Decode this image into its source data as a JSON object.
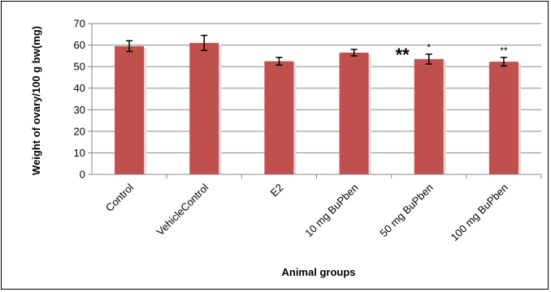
{
  "chart_data": {
    "type": "bar",
    "categories": [
      "Control",
      "VehicleControl",
      "E2",
      "10 mg BuPben",
      "50 mg BuPben",
      "100 mg BuPben"
    ],
    "values": [
      59.5,
      61.0,
      52.5,
      56.5,
      53.5,
      52.3
    ],
    "errors": [
      2.5,
      3.5,
      1.8,
      1.5,
      2.3,
      2.0
    ],
    "annotations": [
      "",
      "",
      "",
      "",
      "*",
      "**"
    ],
    "side_annotation": "**",
    "xlabel": "Animal groups",
    "ylabel": "Weight of ovary/100 g bw(mg)",
    "ylim": [
      0,
      70
    ],
    "yticks": [
      0,
      10,
      20,
      30,
      40,
      50,
      60,
      70
    ],
    "grid": true,
    "legend": "none",
    "bar_color": "#c0504d",
    "grid_color": "#878787"
  }
}
